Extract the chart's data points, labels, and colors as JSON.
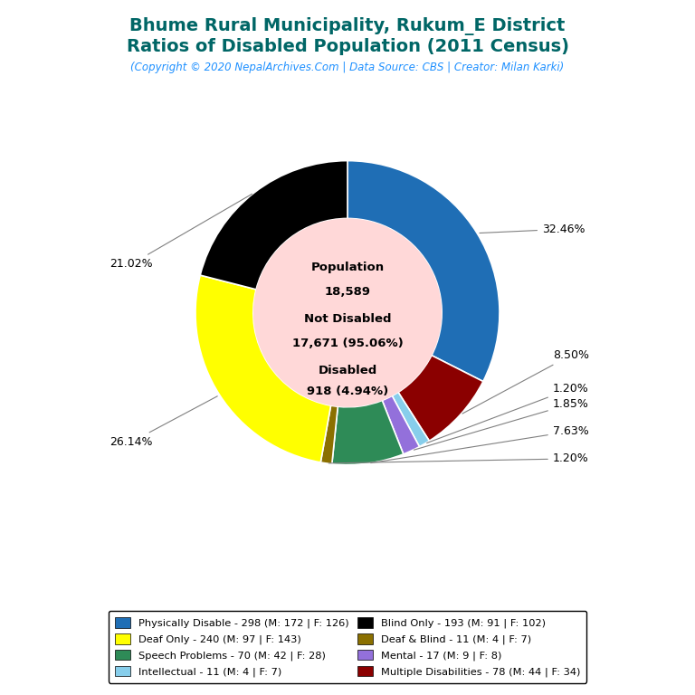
{
  "title_line1": "Bhume Rural Municipality, Rukum_E District",
  "title_line2": "Ratios of Disabled Population (2011 Census)",
  "subtitle": "(Copyright © 2020 NepalArchives.Com | Data Source: CBS | Creator: Milan Karki)",
  "title_color": "#006666",
  "subtitle_color": "#1E90FF",
  "center_bg": "#FFD8D8",
  "slices": [
    {
      "label": "Physically Disable - 298 (M: 172 | F: 126)",
      "value": 298,
      "pct": "32.46%",
      "color": "#1F6EB5"
    },
    {
      "label": "Multiple Disabilities - 78 (M: 44 | F: 34)",
      "value": 78,
      "pct": "8.50%",
      "color": "#8B0000"
    },
    {
      "label": "Intellectual - 11 (M: 4 | F: 7)",
      "value": 11,
      "pct": "1.20%",
      "color": "#87CEEB"
    },
    {
      "label": "Mental - 17 (M: 9 | F: 8)",
      "value": 17,
      "pct": "1.85%",
      "color": "#9370DB"
    },
    {
      "label": "Speech Problems - 70 (M: 42 | F: 28)",
      "value": 70,
      "pct": "7.63%",
      "color": "#2E8B57"
    },
    {
      "label": "Deaf & Blind - 11 (M: 4 | F: 7)",
      "value": 11,
      "pct": "1.20%",
      "color": "#8B7000"
    },
    {
      "label": "Deaf Only - 240 (M: 97 | F: 143)",
      "value": 240,
      "pct": "26.14%",
      "color": "#FFFF00"
    },
    {
      "label": "Blind Only - 193 (M: 91 | F: 102)",
      "value": 193,
      "pct": "21.02%",
      "color": "#000000"
    }
  ],
  "legend_order": [
    "Physically Disable - 298 (M: 172 | F: 126)",
    "Deaf Only - 240 (M: 97 | F: 143)",
    "Speech Problems - 70 (M: 42 | F: 28)",
    "Intellectual - 11 (M: 4 | F: 7)",
    "Blind Only - 193 (M: 91 | F: 102)",
    "Deaf & Blind - 11 (M: 4 | F: 7)",
    "Mental - 17 (M: 9 | F: 8)",
    "Multiple Disabilities - 78 (M: 44 | F: 34)"
  ],
  "legend_colors": {
    "Physically Disable - 298 (M: 172 | F: 126)": "#1F6EB5",
    "Deaf Only - 240 (M: 97 | F: 143)": "#FFFF00",
    "Speech Problems - 70 (M: 42 | F: 28)": "#2E8B57",
    "Intellectual - 11 (M: 4 | F: 7)": "#87CEEB",
    "Blind Only - 193 (M: 91 | F: 102)": "#000000",
    "Deaf & Blind - 11 (M: 4 | F: 7)": "#8B7000",
    "Mental - 17 (M: 9 | F: 8)": "#9370DB",
    "Multiple Disabilities - 78 (M: 44 | F: 34)": "#8B0000"
  },
  "label_offsets": {
    "32.46%": [
      1.25,
      0.08
    ],
    "8.50%": [
      1.32,
      -0.08
    ],
    "1.20%": [
      1.45,
      -0.22
    ],
    "1.85%": [
      1.45,
      -0.3
    ],
    "7.63%": [
      1.45,
      -0.46
    ],
    "1.20%2": [
      1.45,
      -0.6
    ],
    "26.14%": [
      -1.3,
      -0.55
    ],
    "21.02%": [
      -1.3,
      0.18
    ]
  }
}
